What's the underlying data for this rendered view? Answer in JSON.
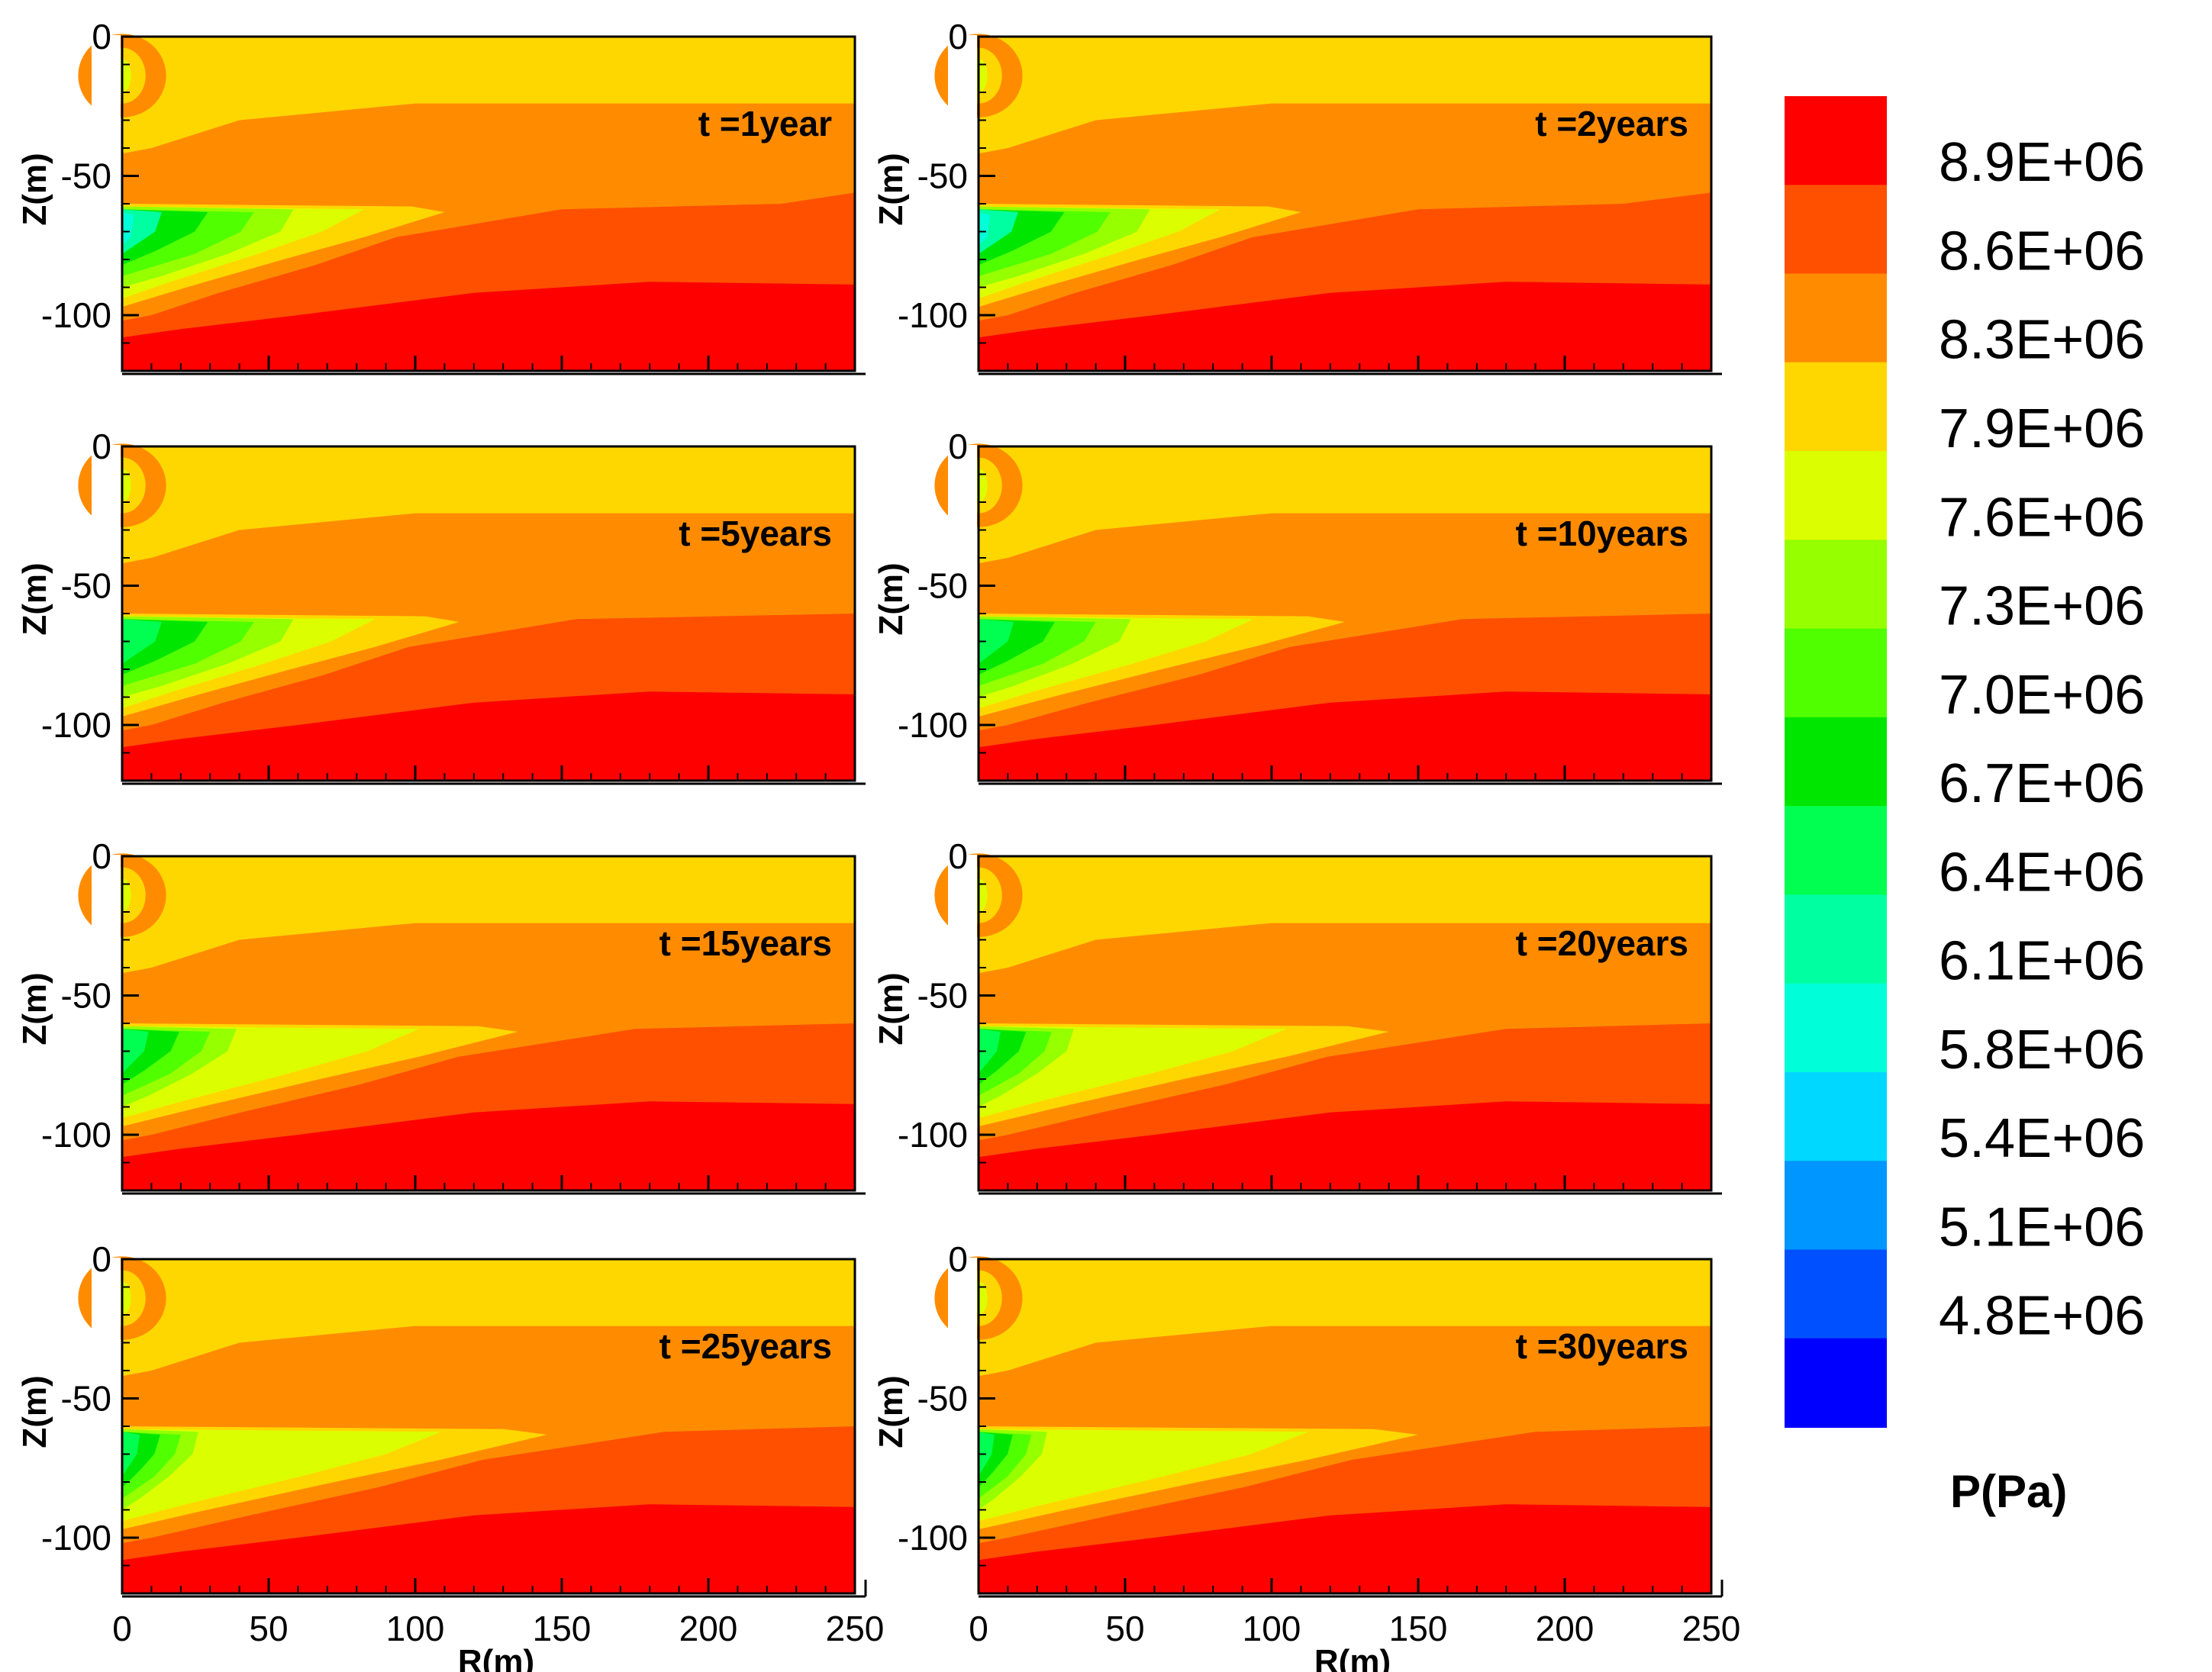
{
  "chart_data": {
    "type": "contour",
    "figure_description_variable": "pressure",
    "xlabel": "R(m)",
    "ylabel": "Z(m)",
    "xlim": [
      0,
      250
    ],
    "ylim": [
      -120,
      0
    ],
    "x_ticks": [
      0,
      50,
      100,
      150,
      200,
      250
    ],
    "y_ticks": [
      0,
      -50,
      -100
    ],
    "colorbar": {
      "title": "P(Pa)",
      "labels": [
        "8.9E+06",
        "8.6E+06",
        "8.3E+06",
        "7.9E+06",
        "7.6E+06",
        "7.3E+06",
        "7.0E+06",
        "6.7E+06",
        "6.4E+06",
        "6.1E+06",
        "5.8E+06",
        "5.4E+06",
        "5.1E+06",
        "4.8E+06"
      ],
      "colors": [
        "#ff0000",
        "#ff5000",
        "#ff8c00",
        "#ffd700",
        "#dcff00",
        "#96ff00",
        "#50ff00",
        "#00e600",
        "#00ff50",
        "#00ffa0",
        "#00ffd8",
        "#00d8ff",
        "#0096ff",
        "#0050ff",
        "#0000ff"
      ]
    },
    "panels": [
      {
        "label": "t =1year",
        "front_mid_r": 110,
        "front_top_r": 225,
        "green_r": 45
      },
      {
        "label": "t =2years",
        "front_mid_r": 110,
        "front_top_r": 220,
        "green_r": 45
      },
      {
        "label": "t =5years",
        "front_mid_r": 115,
        "front_top_r": 250,
        "green_r": 45
      },
      {
        "label": "t =10years",
        "front_mid_r": 125,
        "front_top_r": 250,
        "green_r": 40
      },
      {
        "label": "t =15years",
        "front_mid_r": 135,
        "front_top_r": 250,
        "green_r": 30
      },
      {
        "label": "t =20years",
        "front_mid_r": 140,
        "front_top_r": 250,
        "green_r": 25
      },
      {
        "label": "t =25years",
        "front_mid_r": 145,
        "front_top_r": 250,
        "green_r": 20
      },
      {
        "label": "t =30years",
        "front_mid_r": 150,
        "front_top_r": 250,
        "green_r": 18
      }
    ]
  }
}
